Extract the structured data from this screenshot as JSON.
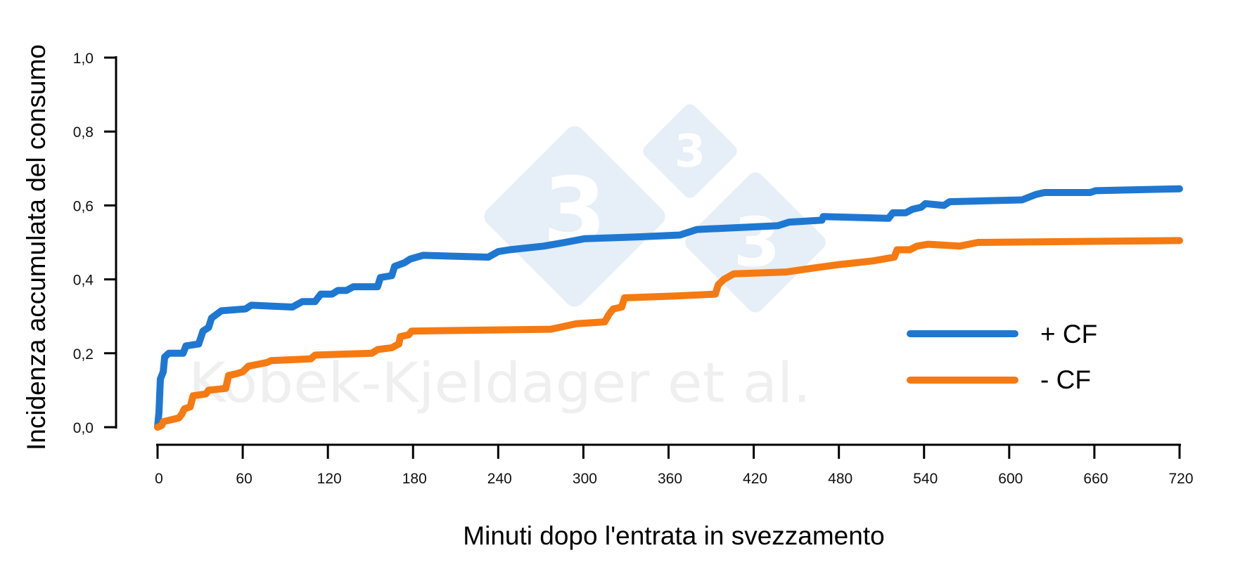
{
  "chart_data": {
    "type": "line",
    "step": true,
    "title": "",
    "xlabel": "Minuti dopo l'entrata in svezzamento",
    "ylabel": "Incidenza accumulata del consumo",
    "xlim": [
      0,
      720
    ],
    "ylim": [
      0,
      1.0
    ],
    "x_ticks": [
      0,
      60,
      120,
      180,
      240,
      300,
      360,
      420,
      480,
      540,
      600,
      660,
      720
    ],
    "x_tick_labels": [
      "0",
      "60",
      "120",
      "180",
      "240",
      "300",
      "360",
      "420",
      "480",
      "540",
      "600",
      "660",
      "720"
    ],
    "y_ticks": [
      0,
      0.2,
      0.4,
      0.6,
      0.8,
      1.0
    ],
    "y_tick_labels": [
      "0,0",
      "0,2",
      "0,4",
      "0,6",
      "0,8",
      "1,0"
    ],
    "grid": false,
    "legend_position": "lower right",
    "watermark": "Kobek-Kjeldager et al.",
    "series": [
      {
        "name": "+ CF",
        "color": "#1e78d2",
        "points": [
          [
            0,
            0
          ],
          [
            1,
            0.04
          ],
          [
            2,
            0.13
          ],
          [
            4,
            0.15
          ],
          [
            5,
            0.19
          ],
          [
            8,
            0.2
          ],
          [
            18,
            0.2
          ],
          [
            20,
            0.22
          ],
          [
            29,
            0.225
          ],
          [
            32,
            0.26
          ],
          [
            36,
            0.27
          ],
          [
            38,
            0.295
          ],
          [
            45,
            0.315
          ],
          [
            62,
            0.32
          ],
          [
            66,
            0.33
          ],
          [
            95,
            0.325
          ],
          [
            102,
            0.34
          ],
          [
            111,
            0.34
          ],
          [
            115,
            0.36
          ],
          [
            123,
            0.36
          ],
          [
            127,
            0.37
          ],
          [
            133,
            0.37
          ],
          [
            138,
            0.38
          ],
          [
            155,
            0.38
          ],
          [
            157,
            0.405
          ],
          [
            165,
            0.41
          ],
          [
            167,
            0.435
          ],
          [
            174,
            0.445
          ],
          [
            178,
            0.455
          ],
          [
            187,
            0.465
          ],
          [
            233,
            0.46
          ],
          [
            240,
            0.475
          ],
          [
            248,
            0.48
          ],
          [
            272,
            0.49
          ],
          [
            287,
            0.5
          ],
          [
            301,
            0.51
          ],
          [
            339,
            0.515
          ],
          [
            368,
            0.52
          ],
          [
            380,
            0.535
          ],
          [
            437,
            0.545
          ],
          [
            445,
            0.555
          ],
          [
            468,
            0.56
          ],
          [
            469,
            0.57
          ],
          [
            515,
            0.565
          ],
          [
            518,
            0.58
          ],
          [
            527,
            0.58
          ],
          [
            532,
            0.59
          ],
          [
            538,
            0.595
          ],
          [
            541,
            0.605
          ],
          [
            554,
            0.6
          ],
          [
            558,
            0.61
          ],
          [
            609,
            0.615
          ],
          [
            619,
            0.63
          ],
          [
            625,
            0.635
          ],
          [
            657,
            0.635
          ],
          [
            661,
            0.64
          ],
          [
            720,
            0.645
          ]
        ]
      },
      {
        "name": "- CF",
        "color": "#f57a12",
        "points": [
          [
            0,
            0
          ],
          [
            3,
            0.005
          ],
          [
            4,
            0.015
          ],
          [
            15,
            0.025
          ],
          [
            17,
            0.035
          ],
          [
            19,
            0.05
          ],
          [
            23,
            0.055
          ],
          [
            25,
            0.085
          ],
          [
            34,
            0.09
          ],
          [
            36,
            0.1
          ],
          [
            48,
            0.105
          ],
          [
            50,
            0.14
          ],
          [
            56,
            0.145
          ],
          [
            60,
            0.15
          ],
          [
            64,
            0.165
          ],
          [
            77,
            0.175
          ],
          [
            80,
            0.18
          ],
          [
            108,
            0.185
          ],
          [
            111,
            0.195
          ],
          [
            151,
            0.2
          ],
          [
            155,
            0.21
          ],
          [
            165,
            0.215
          ],
          [
            170,
            0.225
          ],
          [
            171,
            0.245
          ],
          [
            177,
            0.25
          ],
          [
            179,
            0.26
          ],
          [
            277,
            0.265
          ],
          [
            295,
            0.28
          ],
          [
            315,
            0.285
          ],
          [
            318,
            0.305
          ],
          [
            321,
            0.32
          ],
          [
            327,
            0.325
          ],
          [
            329,
            0.35
          ],
          [
            365,
            0.355
          ],
          [
            393,
            0.36
          ],
          [
            395,
            0.385
          ],
          [
            399,
            0.4
          ],
          [
            406,
            0.415
          ],
          [
            443,
            0.42
          ],
          [
            461,
            0.43
          ],
          [
            480,
            0.44
          ],
          [
            504,
            0.45
          ],
          [
            519,
            0.46
          ],
          [
            521,
            0.48
          ],
          [
            530,
            0.48
          ],
          [
            535,
            0.49
          ],
          [
            543,
            0.495
          ],
          [
            565,
            0.49
          ],
          [
            578,
            0.5
          ],
          [
            720,
            0.505
          ]
        ]
      }
    ]
  },
  "legend": {
    "items": [
      {
        "label": "+ CF",
        "color": "#1e78d2"
      },
      {
        "label": "- CF",
        "color": "#f57a12"
      }
    ]
  },
  "watermark": {
    "text": "Kobek-Kjeldager et al.",
    "logo_digit": "3"
  }
}
